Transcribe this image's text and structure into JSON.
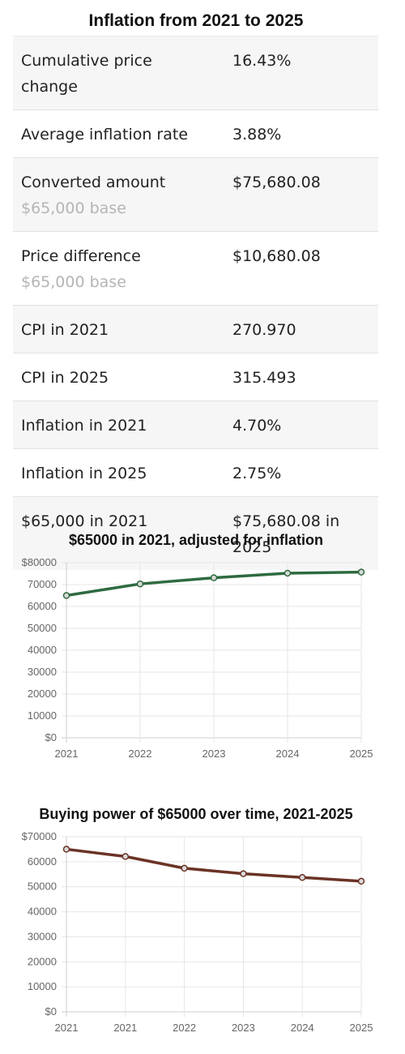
{
  "summary": {
    "title": "Inflation from 2021 to 2025",
    "rows": [
      {
        "label": "Cumulative price change",
        "note": "",
        "value": "16.43%"
      },
      {
        "label": "Average inflation rate",
        "note": "",
        "value": "3.88%"
      },
      {
        "label": "Converted amount",
        "note": "$65,000 base",
        "value": "$75,680.08"
      },
      {
        "label": "Price difference",
        "note": "$65,000 base",
        "value": "$10,680.08"
      },
      {
        "label": "CPI in 2021",
        "note": "",
        "value": "270.970"
      },
      {
        "label": "CPI in 2025",
        "note": "",
        "value": "315.493"
      },
      {
        "label": "Inflation in 2021",
        "note": "",
        "value": "4.70%"
      },
      {
        "label": "Inflation in 2025",
        "note": "",
        "value": "2.75%"
      },
      {
        "label": "$65,000 in 2021",
        "note": "",
        "value": "$75,680.08 in 2025"
      }
    ]
  },
  "chart_data": [
    {
      "type": "line",
      "title": "$65000 in 2021, adjusted for inflation",
      "xlabel": "",
      "ylabel": "",
      "categories": [
        "2021",
        "2022",
        "2023",
        "2024",
        "2025"
      ],
      "series": [
        {
          "values": [
            65000,
            70300,
            73100,
            75200,
            75680
          ],
          "color": "#2e6b3f"
        }
      ],
      "ylim": [
        0,
        80000
      ],
      "yticks": [
        "$0",
        "10000",
        "20000",
        "30000",
        "40000",
        "50000",
        "60000",
        "70000",
        "$80000"
      ],
      "grid": true,
      "legend": "none"
    },
    {
      "type": "line",
      "title": "Buying power of $65000 over time, 2021-2025",
      "xlabel": "",
      "ylabel": "",
      "categories": [
        "2021",
        "2021",
        "2022",
        "2023",
        "2024",
        "2025"
      ],
      "series": [
        {
          "values": [
            65000,
            62100,
            57400,
            55200,
            53700,
            52200
          ],
          "color": "#6b3326"
        }
      ],
      "ylim": [
        0,
        70000
      ],
      "yticks": [
        "$0",
        "10000",
        "20000",
        "30000",
        "40000",
        "50000",
        "60000",
        "$70000"
      ],
      "grid": true,
      "legend": "none"
    }
  ]
}
